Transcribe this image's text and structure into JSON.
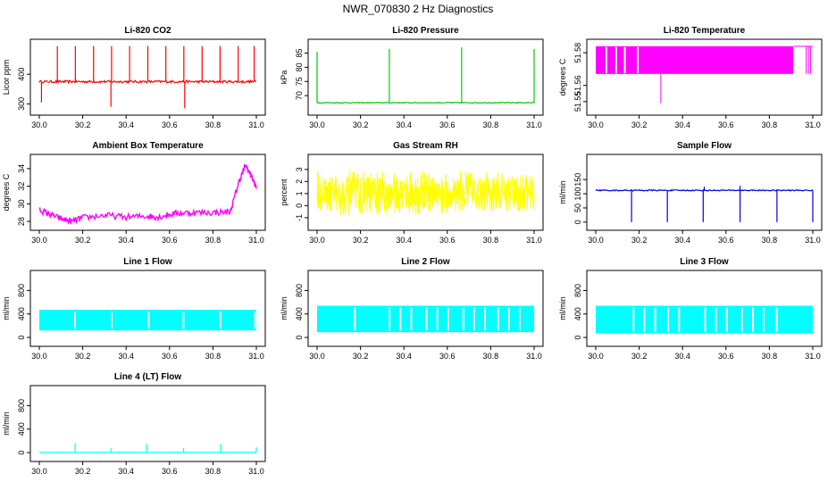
{
  "page_title": "NWR_070830  2 Hz Diagnostics",
  "chart_data": [
    {
      "type": "line",
      "title": "Li-820 CO2",
      "ylabel": "Licor ppm",
      "color": "#ff0000",
      "xlim": [
        30.0,
        31.0
      ],
      "ylim": [
        280,
        500
      ],
      "xticks": [
        30.0,
        30.2,
        30.4,
        30.6,
        30.8,
        31.0
      ],
      "yticks": [
        300,
        400
      ],
      "baseline": 375,
      "noise": 4,
      "spikes_up": [
        {
          "x": 30.083,
          "y": 495
        },
        {
          "x": 30.166,
          "y": 495
        },
        {
          "x": 30.25,
          "y": 495
        },
        {
          "x": 30.333,
          "y": 495
        },
        {
          "x": 30.416,
          "y": 495
        },
        {
          "x": 30.5,
          "y": 495
        },
        {
          "x": 30.583,
          "y": 495
        },
        {
          "x": 30.666,
          "y": 495
        },
        {
          "x": 30.75,
          "y": 495
        },
        {
          "x": 30.833,
          "y": 495
        },
        {
          "x": 30.916,
          "y": 495
        },
        {
          "x": 30.99,
          "y": 495
        }
      ],
      "spikes_down": [
        {
          "x": 30.01,
          "y": 305
        },
        {
          "x": 30.33,
          "y": 290
        },
        {
          "x": 30.67,
          "y": 285
        }
      ]
    },
    {
      "type": "line",
      "title": "Li-820 Pressure",
      "ylabel": "kPa",
      "color": "#00cc00",
      "xlim": [
        30.0,
        31.0
      ],
      "ylim": [
        65,
        88
      ],
      "xticks": [
        30.0,
        30.2,
        30.4,
        30.6,
        30.8,
        31.0
      ],
      "yticks": [
        70,
        75,
        80,
        85
      ],
      "baseline": 67.5,
      "noise": 0.15,
      "spikes_up": [
        {
          "x": 30.0,
          "y": 85.5
        },
        {
          "x": 30.333,
          "y": 86.5
        },
        {
          "x": 30.666,
          "y": 87
        },
        {
          "x": 31.0,
          "y": 86.5
        }
      ],
      "spikes_down": []
    },
    {
      "type": "band",
      "title": "Li-820 Temperature",
      "ylabel": "degrees C",
      "color": "#ff00ff",
      "xlim": [
        30.0,
        31.0
      ],
      "ylim": [
        51.545,
        51.585
      ],
      "xticks": [
        30.0,
        30.2,
        30.4,
        30.6,
        30.8,
        31.0
      ],
      "yticks": [
        51.55,
        51.56,
        51.58
      ],
      "band_low": 51.567,
      "band_high": 51.584,
      "band_end": 30.91,
      "gaps": [
        30.045,
        30.09,
        30.13,
        30.19
      ],
      "tail_lines": [
        30.97,
        30.98,
        30.99
      ],
      "spikes_down": [
        {
          "x": 30.3,
          "y": 51.549
        }
      ]
    },
    {
      "type": "line",
      "title": "Ambient Box Temperature",
      "ylabel": "degrees C",
      "color": "#ff00ff",
      "xlim": [
        30.0,
        31.0
      ],
      "ylim": [
        27.6,
        35.0
      ],
      "xticks": [
        30.0,
        30.2,
        30.4,
        30.6,
        30.8,
        31.0
      ],
      "yticks": [
        28,
        30,
        32,
        34
      ],
      "path": [
        {
          "x": 30.0,
          "y": 29.3
        },
        {
          "x": 30.05,
          "y": 28.8
        },
        {
          "x": 30.1,
          "y": 28.3
        },
        {
          "x": 30.15,
          "y": 28.0
        },
        {
          "x": 30.2,
          "y": 28.4
        },
        {
          "x": 30.3,
          "y": 28.7
        },
        {
          "x": 30.4,
          "y": 28.5
        },
        {
          "x": 30.5,
          "y": 28.6
        },
        {
          "x": 30.55,
          "y": 28.5
        },
        {
          "x": 30.62,
          "y": 28.9
        },
        {
          "x": 30.7,
          "y": 29.0
        },
        {
          "x": 30.8,
          "y": 29.0
        },
        {
          "x": 30.88,
          "y": 29.1
        },
        {
          "x": 30.92,
          "y": 32.5
        },
        {
          "x": 30.95,
          "y": 34.4
        },
        {
          "x": 30.98,
          "y": 33.0
        },
        {
          "x": 31.0,
          "y": 31.8
        }
      ],
      "noise": 0.35
    },
    {
      "type": "noiseband",
      "title": "Gas Stream RH",
      "ylabel": "percent",
      "color": "#ffff00",
      "xlim": [
        30.0,
        31.0
      ],
      "ylim": [
        -1.6,
        3.8
      ],
      "xticks": [
        30.0,
        30.2,
        30.4,
        30.6,
        30.8,
        31.0
      ],
      "yticks": [
        -1,
        0,
        1,
        2,
        3
      ],
      "center": 1.0,
      "spread": 2.0
    },
    {
      "type": "line",
      "title": "Sample Flow",
      "ylabel": "ml/min",
      "color": "#0000dd",
      "xlim": [
        30.0,
        31.0
      ],
      "ylim": [
        -10,
        220
      ],
      "xticks": [
        30.0,
        30.2,
        30.4,
        30.6,
        30.8,
        31.0
      ],
      "yticks": [
        0,
        50,
        100,
        150
      ],
      "baseline": 112,
      "noise": 2,
      "spikes_up": [
        {
          "x": 30.5,
          "y": 125
        },
        {
          "x": 30.665,
          "y": 128
        }
      ],
      "spikes_down": [
        {
          "x": 30.165,
          "y": 0
        },
        {
          "x": 30.33,
          "y": 0
        },
        {
          "x": 30.495,
          "y": 0
        },
        {
          "x": 30.665,
          "y": 0
        },
        {
          "x": 30.835,
          "y": 0
        },
        {
          "x": 31.0,
          "y": 0
        }
      ]
    },
    {
      "type": "gapband",
      "title": "Line 1 Flow",
      "ylabel": "ml/min",
      "color": "#00ffff",
      "xlim": [
        30.0,
        31.0
      ],
      "ylim": [
        -60,
        1050
      ],
      "xticks": [
        30.0,
        30.2,
        30.4,
        30.6,
        30.8,
        31.0
      ],
      "yticks": [
        0,
        400,
        800
      ],
      "band_low": 120,
      "band_high": 470,
      "gaps": [
        30.16,
        30.33,
        30.5,
        30.66,
        30.83,
        30.99
      ]
    },
    {
      "type": "gapband",
      "title": "Line 2 Flow",
      "ylabel": "ml/min",
      "color": "#00ffff",
      "xlim": [
        30.0,
        31.0
      ],
      "ylim": [
        -60,
        1050
      ],
      "xticks": [
        30.0,
        30.2,
        30.4,
        30.6,
        30.8,
        31.0
      ],
      "yticks": [
        0,
        400,
        800
      ],
      "band_low": 90,
      "band_high": 540,
      "gaps": [
        30.17,
        30.33,
        30.38,
        30.43,
        30.5,
        30.55,
        30.6,
        30.67,
        30.72,
        30.77,
        30.83,
        30.88,
        30.93
      ]
    },
    {
      "type": "gapband",
      "title": "Line 3 Flow",
      "ylabel": "ml/min",
      "color": "#00ffff",
      "xlim": [
        30.0,
        31.0
      ],
      "ylim": [
        -60,
        1050
      ],
      "xticks": [
        30.0,
        30.2,
        30.4,
        30.6,
        30.8,
        31.0
      ],
      "yticks": [
        0,
        400,
        800
      ],
      "band_low": 70,
      "band_high": 540,
      "gaps": [
        30.17,
        30.22,
        30.27,
        30.33,
        30.38,
        30.5,
        30.55,
        30.6,
        30.67,
        30.72,
        30.77,
        30.83
      ]
    },
    {
      "type": "line",
      "title": "Line 4 (LT) Flow",
      "ylabel": "ml/min",
      "color": "#00ffff",
      "xlim": [
        30.0,
        31.0
      ],
      "ylim": [
        -60,
        1050
      ],
      "xticks": [
        30.0,
        30.2,
        30.4,
        30.6,
        30.8,
        31.0
      ],
      "yticks": [
        0,
        400,
        800
      ],
      "baseline": 5,
      "noise": 2,
      "spikes_up": [
        {
          "x": 30.165,
          "y": 160
        },
        {
          "x": 30.33,
          "y": 80
        },
        {
          "x": 30.495,
          "y": 150
        },
        {
          "x": 30.665,
          "y": 80
        },
        {
          "x": 30.835,
          "y": 150
        },
        {
          "x": 31.0,
          "y": 90
        }
      ],
      "spikes_down": []
    }
  ]
}
